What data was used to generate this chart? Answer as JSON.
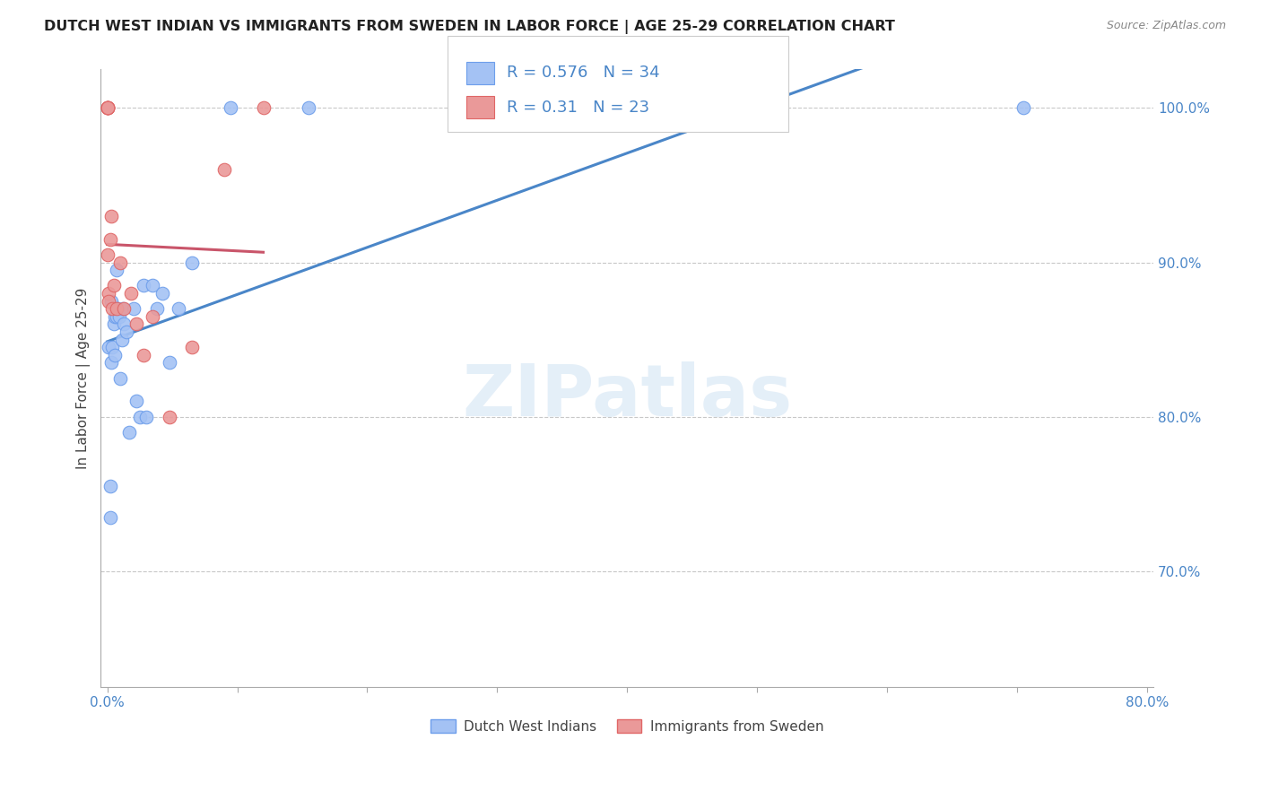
{
  "title": "DUTCH WEST INDIAN VS IMMIGRANTS FROM SWEDEN IN LABOR FORCE | AGE 25-29 CORRELATION CHART",
  "source": "Source: ZipAtlas.com",
  "ylabel": "In Labor Force | Age 25-29",
  "xlim": [
    -0.005,
    0.805
  ],
  "ylim": [
    0.625,
    1.025
  ],
  "xtick_labels": [
    "0.0%",
    "",
    "",
    "",
    "",
    "",
    "",
    "",
    "80.0%"
  ],
  "xtick_values": [
    0.0,
    0.1,
    0.2,
    0.3,
    0.4,
    0.5,
    0.6,
    0.7,
    0.8
  ],
  "ytick_labels": [
    "70.0%",
    "80.0%",
    "90.0%",
    "100.0%"
  ],
  "ytick_values": [
    0.7,
    0.8,
    0.9,
    1.0
  ],
  "blue_scatter_color": "#a4c2f4",
  "blue_edge_color": "#6d9eeb",
  "pink_scatter_color": "#ea9999",
  "pink_edge_color": "#e06666",
  "blue_line_color": "#4a86c8",
  "pink_line_color": "#c9556a",
  "tick_label_color": "#4a86c8",
  "R_blue": 0.576,
  "N_blue": 34,
  "R_pink": 0.31,
  "N_pink": 23,
  "watermark_text": "ZIPatlas",
  "legend_label_blue": "Dutch West Indians",
  "legend_label_pink": "Immigrants from Sweden",
  "blue_x": [
    0.001,
    0.002,
    0.002,
    0.003,
    0.003,
    0.004,
    0.005,
    0.006,
    0.006,
    0.007,
    0.007,
    0.008,
    0.009,
    0.01,
    0.011,
    0.012,
    0.013,
    0.015,
    0.017,
    0.02,
    0.022,
    0.025,
    0.028,
    0.03,
    0.035,
    0.038,
    0.042,
    0.048,
    0.055,
    0.065,
    0.095,
    0.155,
    0.295,
    0.705
  ],
  "blue_y": [
    0.845,
    0.735,
    0.755,
    0.875,
    0.835,
    0.845,
    0.86,
    0.865,
    0.84,
    0.865,
    0.895,
    0.87,
    0.865,
    0.825,
    0.85,
    0.87,
    0.86,
    0.855,
    0.79,
    0.87,
    0.81,
    0.8,
    0.885,
    0.8,
    0.885,
    0.87,
    0.88,
    0.835,
    0.87,
    0.9,
    1.0,
    1.0,
    1.0,
    1.0
  ],
  "pink_x": [
    0.0,
    0.0,
    0.0,
    0.0,
    0.0,
    0.0,
    0.001,
    0.001,
    0.002,
    0.003,
    0.004,
    0.005,
    0.007,
    0.01,
    0.013,
    0.018,
    0.022,
    0.028,
    0.035,
    0.048,
    0.065,
    0.09,
    0.12
  ],
  "pink_y": [
    1.0,
    1.0,
    1.0,
    1.0,
    1.0,
    0.905,
    0.88,
    0.875,
    0.915,
    0.93,
    0.87,
    0.885,
    0.87,
    0.9,
    0.87,
    0.88,
    0.86,
    0.84,
    0.865,
    0.8,
    0.845,
    0.96,
    1.0
  ],
  "bg_color": "#ffffff",
  "grid_color": "#c8c8c8"
}
